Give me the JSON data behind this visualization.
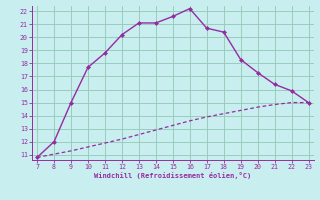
{
  "xlabel": "Windchill (Refroidissement éolien,°C)",
  "x_main": [
    7,
    8,
    9,
    10,
    11,
    12,
    13,
    14,
    15,
    16,
    17,
    18,
    19,
    20,
    21,
    22,
    23
  ],
  "y_main": [
    10.8,
    12.0,
    15.0,
    17.7,
    18.8,
    20.2,
    21.1,
    21.1,
    21.6,
    22.2,
    20.7,
    20.4,
    18.3,
    17.3,
    16.4,
    15.9,
    15.0
  ],
  "x_dashed": [
    7,
    8,
    9,
    10,
    11,
    12,
    13,
    14,
    15,
    16,
    17,
    18,
    19,
    20,
    21,
    22,
    23
  ],
  "y_dashed": [
    10.8,
    11.05,
    11.3,
    11.6,
    11.9,
    12.2,
    12.55,
    12.9,
    13.25,
    13.6,
    13.9,
    14.15,
    14.4,
    14.65,
    14.85,
    15.0,
    15.0
  ],
  "line_color": "#952ca0",
  "bg_color": "#c8eef0",
  "grid_color": "#99ccbb",
  "xlim": [
    7,
    23
  ],
  "ylim": [
    11,
    22
  ],
  "xticks": [
    7,
    8,
    9,
    10,
    11,
    12,
    13,
    14,
    15,
    16,
    17,
    18,
    19,
    20,
    21,
    22,
    23
  ],
  "yticks": [
    11,
    12,
    13,
    14,
    15,
    16,
    17,
    18,
    19,
    20,
    21,
    22
  ]
}
